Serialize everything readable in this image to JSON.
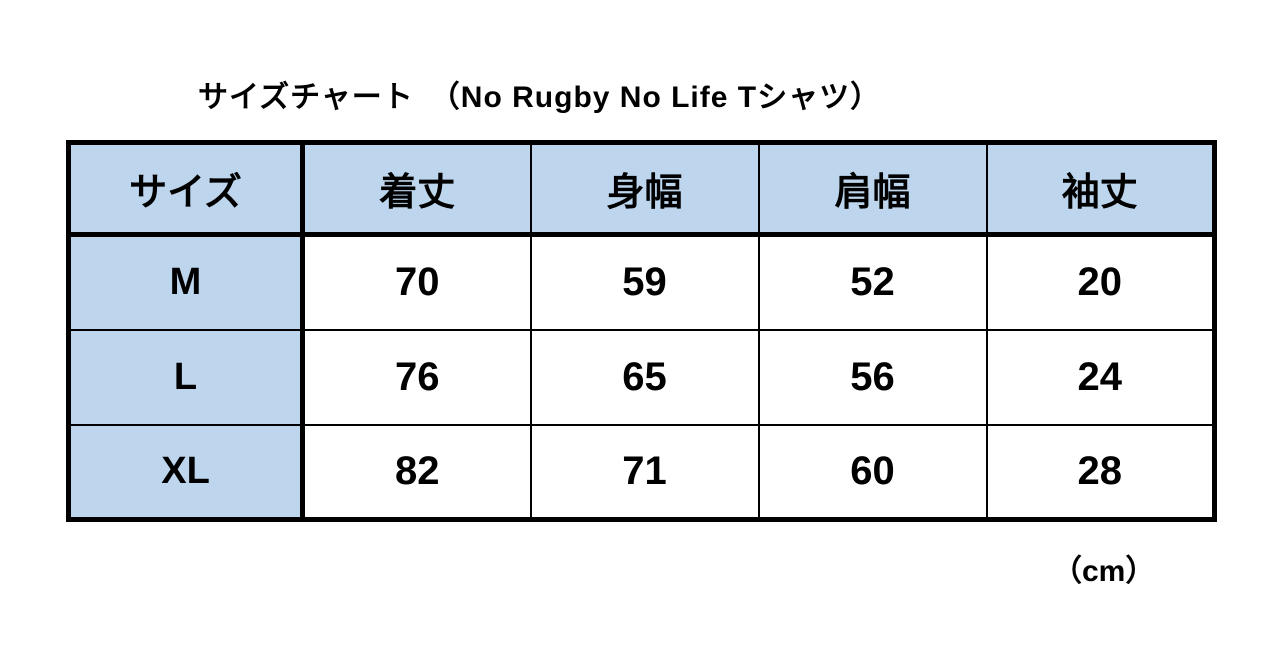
{
  "page": {
    "title": "サイズチャート　（No Rugby No Life Tシャツ）",
    "unit_label": "（cm）"
  },
  "colors": {
    "header_bg": "#BDD6EE",
    "border": "#000000",
    "page_bg": "#FFFFFF"
  },
  "chart_data": {
    "type": "table",
    "title": "サイズチャート （No Rugby No Life Tシャツ）",
    "unit": "cm",
    "columns": [
      "サイズ",
      "着丈",
      "身幅",
      "肩幅",
      "袖丈"
    ],
    "rows": [
      {
        "size": "M",
        "values": [
          70,
          59,
          52,
          20
        ]
      },
      {
        "size": "L",
        "values": [
          76,
          65,
          56,
          24
        ]
      },
      {
        "size": "XL",
        "values": [
          82,
          71,
          60,
          28
        ]
      }
    ]
  }
}
